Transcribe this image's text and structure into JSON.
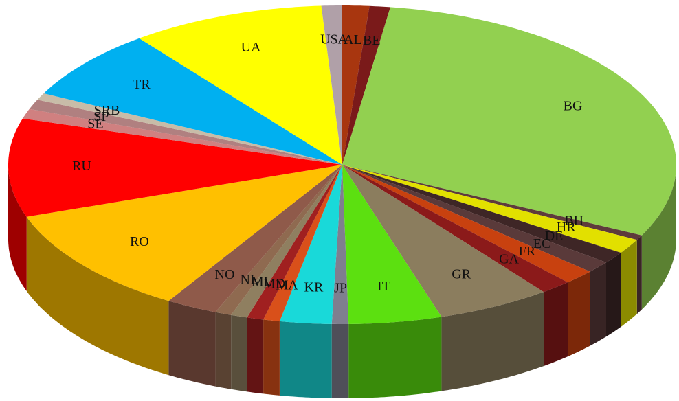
{
  "chart_data": {
    "type": "pie3d",
    "categories": [
      "AL",
      "BE",
      "BG",
      "BH",
      "HR",
      "DE",
      "EC",
      "FR",
      "GA",
      "GR",
      "IT",
      "JP",
      "KR",
      "MA",
      "MD",
      "ML",
      "NL",
      "NO",
      "RO",
      "RU",
      "SE",
      "SP",
      "SRB",
      "TR",
      "UA",
      "USA"
    ],
    "values": [
      1.3,
      1.0,
      30,
      0.5,
      1.5,
      1.2,
      1.2,
      1.5,
      1.5,
      5.5,
      4.5,
      0.8,
      2.5,
      0.8,
      0.8,
      0.8,
      0.8,
      2.5,
      11,
      10,
      1.0,
      1.0,
      0.7,
      7.2,
      9.4,
      1.0
    ],
    "colors": [
      "#a8360f",
      "#7a1a1a",
      "#92d050",
      "#5e3b3b",
      "#e2e000",
      "#3e2626",
      "#5a3a3a",
      "#c8410f",
      "#8b1a1a",
      "#8b7d5e",
      "#5ce010",
      "#7f7f8f",
      "#19d9d9",
      "#d9501a",
      "#a02020",
      "#8f7f60",
      "#8f6a50",
      "#8f5a4a",
      "#ffc000",
      "#ff0000",
      "#d08080",
      "#b08080",
      "#c8bca8",
      "#00b0f0",
      "#ffff00",
      "#b0a0a8"
    ]
  }
}
